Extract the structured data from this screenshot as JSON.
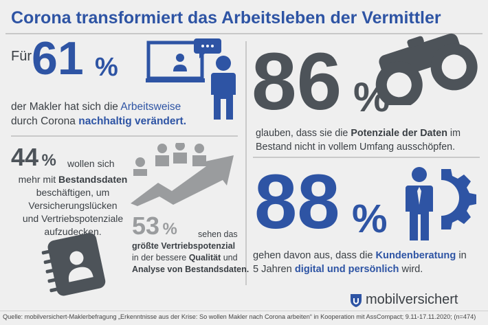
{
  "title": "Corona transformiert das Arbeitsleben der Vermittler",
  "block1": {
    "prefix": "Für",
    "number": "61",
    "percent": "%",
    "line1_a": "der Makler hat sich die ",
    "line1_b": "Arbeitsweise",
    "line2_a": "durch Corona ",
    "line2_b": "nachhaltig verändert."
  },
  "block2": {
    "number": "86",
    "percent": "%",
    "line1_a": "glauben, dass sie die ",
    "line1_b": "Potenziale der Daten",
    "line1_c": " im",
    "line2": "Bestand nicht in vollem Umfang ausschöpfen."
  },
  "block3": {
    "number": "44",
    "percent": "%",
    "line1": "wollen sich",
    "line2_a": "mehr mit ",
    "line2_b": "Bestandsdaten",
    "line3": "beschäftigen, um",
    "line4": "Versicherungslücken",
    "line5": "und Vertriebspotenziale",
    "line6": "aufzudecken."
  },
  "block4": {
    "number": "53",
    "percent": "%",
    "line1": "sehen das",
    "line2_a": "größte",
    "line2_b": " Vertriebspotenzial",
    "line3_a": "in der bessere ",
    "line3_b": "Qualität",
    "line3_c": " und",
    "line4": "Analyse von Bestandsdaten."
  },
  "block5": {
    "number": "88",
    "percent": "%",
    "line1_a": "gehen davon aus, dass die ",
    "line1_b": "Kundenberatung",
    "line1_c": " in",
    "line2_a": "5 Jahren ",
    "line2_b": "digital und persönlich",
    "line2_c": " wird."
  },
  "brand": "mobilversichert",
  "footer": "Quelle: mobilversichert-Maklerbefragung „Erkenntnisse aus der Krise: So wollen Makler nach Corona arbeiten“ in Kooperation mit AssCompact; 9.11-17.11.2020; (n=474)",
  "colors": {
    "blue": "#2e54a4",
    "dark": "#4d5359",
    "gray": "#9a9c9e",
    "background": "#efefef"
  },
  "icons": [
    "video-call-icon",
    "binoculars-icon",
    "growth-arrow-icon",
    "notebook-contact-icon",
    "businessman-gear-icon",
    "shield-logo-icon"
  ]
}
